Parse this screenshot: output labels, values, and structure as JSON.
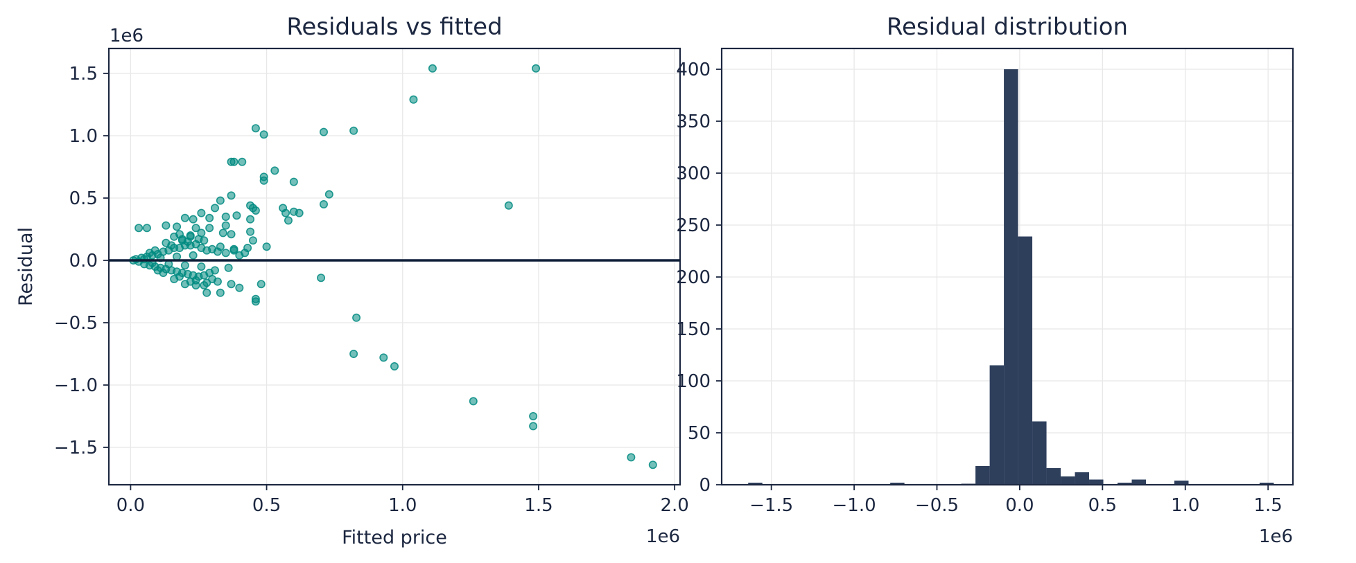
{
  "colors": {
    "scatter": "#008a80",
    "zero_line": "#0f1f38",
    "hist": "#2e3f5c",
    "text": "#1c2740"
  },
  "chart_data": [
    {
      "type": "scatter",
      "title": "Residuals vs fitted",
      "xlabel": "Fitted price",
      "ylabel": "Residual",
      "x_offset_label": "1e6",
      "y_offset_label": "1e6",
      "xlim": [
        -0.08,
        2.02
      ],
      "ylim": [
        -1.8,
        1.7
      ],
      "xticks": [
        0.0,
        0.5,
        1.0,
        1.5,
        2.0
      ],
      "xtick_labels": [
        "0.0",
        "0.5",
        "1.0",
        "1.5",
        "2.0"
      ],
      "yticks": [
        -1.5,
        -1.0,
        -0.5,
        0.0,
        0.5,
        1.0,
        1.5
      ],
      "ytick_labels": [
        "−1.5",
        "−1.0",
        "−0.5",
        "0.0",
        "0.5",
        "1.0",
        "1.5"
      ],
      "hline": 0,
      "grid": true,
      "points": [
        [
          1.11,
          1.54
        ],
        [
          1.49,
          1.54
        ],
        [
          1.04,
          1.29
        ],
        [
          0.46,
          1.06
        ],
        [
          0.49,
          1.01
        ],
        [
          0.71,
          1.03
        ],
        [
          0.82,
          1.04
        ],
        [
          0.37,
          0.79
        ],
        [
          0.38,
          0.79
        ],
        [
          0.41,
          0.79
        ],
        [
          0.53,
          0.72
        ],
        [
          0.49,
          0.67
        ],
        [
          0.49,
          0.64
        ],
        [
          0.6,
          0.63
        ],
        [
          0.73,
          0.53
        ],
        [
          0.37,
          0.52
        ],
        [
          0.33,
          0.48
        ],
        [
          0.44,
          0.44
        ],
        [
          0.45,
          0.42
        ],
        [
          0.46,
          0.4
        ],
        [
          0.56,
          0.42
        ],
        [
          0.57,
          0.38
        ],
        [
          0.6,
          0.39
        ],
        [
          0.62,
          0.38
        ],
        [
          0.71,
          0.45
        ],
        [
          0.58,
          0.32
        ],
        [
          1.39,
          0.44
        ],
        [
          0.39,
          0.36
        ],
        [
          0.31,
          0.42
        ],
        [
          0.29,
          0.34
        ],
        [
          0.26,
          0.38
        ],
        [
          0.35,
          0.35
        ],
        [
          0.44,
          0.33
        ],
        [
          0.44,
          0.23
        ],
        [
          0.35,
          0.28
        ],
        [
          0.29,
          0.26
        ],
        [
          0.23,
          0.33
        ],
        [
          0.2,
          0.34
        ],
        [
          0.17,
          0.27
        ],
        [
          0.34,
          0.22
        ],
        [
          0.37,
          0.21
        ],
        [
          0.45,
          0.16
        ],
        [
          0.5,
          0.11
        ],
        [
          0.43,
          0.1
        ],
        [
          0.38,
          0.09
        ],
        [
          0.42,
          0.06
        ],
        [
          0.06,
          0.26
        ],
        [
          0.03,
          0.26
        ],
        [
          0.13,
          0.28
        ],
        [
          0.24,
          0.26
        ],
        [
          0.26,
          0.22
        ],
        [
          0.22,
          0.19
        ],
        [
          0.16,
          0.19
        ],
        [
          0.19,
          0.17
        ],
        [
          0.7,
          -0.14
        ],
        [
          0.48,
          -0.19
        ],
        [
          0.4,
          -0.22
        ],
        [
          0.33,
          -0.26
        ],
        [
          0.28,
          -0.26
        ],
        [
          0.37,
          -0.19
        ],
        [
          0.32,
          -0.17
        ],
        [
          0.46,
          -0.31
        ],
        [
          0.46,
          -0.33
        ],
        [
          0.27,
          -0.2
        ],
        [
          0.83,
          -0.46
        ],
        [
          0.82,
          -0.75
        ],
        [
          0.93,
          -0.78
        ],
        [
          0.97,
          -0.85
        ],
        [
          1.26,
          -1.13
        ],
        [
          1.48,
          -1.25
        ],
        [
          1.48,
          -1.33
        ],
        [
          1.84,
          -1.58
        ],
        [
          1.92,
          -1.64
        ],
        [
          0.01,
          0.0
        ],
        [
          0.02,
          0.01
        ],
        [
          0.03,
          -0.01
        ],
        [
          0.04,
          0.02
        ],
        [
          0.05,
          -0.03
        ],
        [
          0.06,
          0.03
        ],
        [
          0.07,
          -0.04
        ],
        [
          0.08,
          0.04
        ],
        [
          0.09,
          -0.05
        ],
        [
          0.1,
          0.05
        ],
        [
          0.11,
          -0.06
        ],
        [
          0.12,
          0.07
        ],
        [
          0.13,
          -0.07
        ],
        [
          0.14,
          0.08
        ],
        [
          0.15,
          -0.08
        ],
        [
          0.16,
          0.1
        ],
        [
          0.17,
          -0.09
        ],
        [
          0.18,
          0.1
        ],
        [
          0.19,
          -0.1
        ],
        [
          0.2,
          0.12
        ],
        [
          0.21,
          -0.11
        ],
        [
          0.22,
          0.12
        ],
        [
          0.23,
          -0.12
        ],
        [
          0.24,
          0.13
        ],
        [
          0.25,
          -0.13
        ],
        [
          0.26,
          0.1
        ],
        [
          0.27,
          -0.12
        ],
        [
          0.28,
          0.08
        ],
        [
          0.29,
          -0.1
        ],
        [
          0.3,
          0.09
        ],
        [
          0.31,
          -0.08
        ],
        [
          0.32,
          0.07
        ],
        [
          0.33,
          0.11
        ],
        [
          0.35,
          0.06
        ],
        [
          0.36,
          -0.06
        ],
        [
          0.38,
          0.08
        ],
        [
          0.4,
          0.04
        ],
        [
          0.05,
          0.01
        ],
        [
          0.08,
          -0.02
        ],
        [
          0.11,
          0.02
        ],
        [
          0.14,
          -0.03
        ],
        [
          0.17,
          0.03
        ],
        [
          0.2,
          -0.04
        ],
        [
          0.23,
          0.04
        ],
        [
          0.26,
          -0.05
        ],
        [
          0.09,
          0.08
        ],
        [
          0.12,
          -0.1
        ],
        [
          0.15,
          0.12
        ],
        [
          0.18,
          -0.13
        ],
        [
          0.21,
          0.15
        ],
        [
          0.24,
          -0.16
        ],
        [
          0.13,
          0.14
        ],
        [
          0.16,
          -0.15
        ],
        [
          0.19,
          0.16
        ],
        [
          0.22,
          -0.17
        ],
        [
          0.25,
          0.17
        ],
        [
          0.28,
          -0.18
        ],
        [
          0.1,
          -0.08
        ],
        [
          0.07,
          0.06
        ],
        [
          0.27,
          0.16
        ],
        [
          0.3,
          -0.15
        ],
        [
          0.22,
          0.2
        ],
        [
          0.18,
          0.21
        ],
        [
          0.24,
          -0.2
        ],
        [
          0.2,
          -0.19
        ]
      ]
    },
    {
      "type": "bar",
      "title": "Residual distribution",
      "xlabel": "",
      "ylabel": "",
      "x_offset_label": "1e6",
      "xlim": [
        -1.8,
        1.65
      ],
      "ylim": [
        0,
        420
      ],
      "xticks": [
        -1.5,
        -1.0,
        -0.5,
        0.0,
        0.5,
        1.0,
        1.5
      ],
      "xtick_labels": [
        "−1.5",
        "−1.0",
        "−0.5",
        "0.0",
        "0.5",
        "1.0",
        "1.5"
      ],
      "yticks": [
        0,
        50,
        100,
        150,
        200,
        250,
        300,
        350,
        400
      ],
      "ytick_labels": [
        "0",
        "50",
        "100",
        "150",
        "200",
        "250",
        "300",
        "350",
        "400"
      ],
      "grid": true,
      "bin_edges": [
        -1.64,
        -1.5542,
        -1.4684,
        -1.3826,
        -1.2968,
        -1.211,
        -1.1252,
        -1.0394,
        -0.9536,
        -0.8678,
        -0.782,
        -0.6962,
        -0.6104,
        -0.5246,
        -0.4388,
        -0.353,
        -0.2672,
        -0.1814,
        -0.0956,
        -0.0098,
        0.076,
        0.1618,
        0.2476,
        0.3334,
        0.4192,
        0.505,
        0.5908,
        0.6766,
        0.7624,
        0.8482,
        0.934,
        1.0198,
        1.1056,
        1.1914,
        1.2772,
        1.363,
        1.4488,
        1.5346
      ],
      "counts": [
        2,
        0,
        0,
        0,
        0,
        0,
        0,
        0,
        0,
        0,
        2,
        0,
        0,
        0,
        0,
        1,
        18,
        115,
        400,
        239,
        61,
        16,
        8,
        12,
        5,
        0,
        2,
        5,
        0,
        0,
        4,
        0,
        0,
        0,
        0,
        0,
        2
      ]
    }
  ]
}
